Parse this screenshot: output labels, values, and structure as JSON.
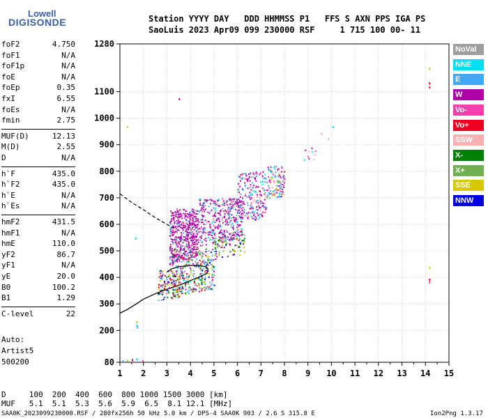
{
  "logo": {
    "line1": "Lowell",
    "line2": "DIGISONDE"
  },
  "header": {
    "line1": "Station YYYY DAY   DDD HHMMSS P1   FFS S AXN PPS IGA PS",
    "line2": "SaoLuis 2023 Apr09 099 230000 RSF     1 715 100 00- 11"
  },
  "params": [
    {
      "name": "foF2",
      "value": "4.750"
    },
    {
      "name": "foF1",
      "value": "N/A"
    },
    {
      "name": "foF1p",
      "value": "N/A"
    },
    {
      "name": "foE",
      "value": "N/A"
    },
    {
      "name": "foEp",
      "value": "0.35"
    },
    {
      "name": "fxI",
      "value": "6.55"
    },
    {
      "name": "foEs",
      "value": "N/A"
    },
    {
      "name": "fmin",
      "value": "2.75"
    },
    {
      "name": "MUF(D)",
      "value": "12.13"
    },
    {
      "name": "M(D)",
      "value": "2.55"
    },
    {
      "name": "D",
      "value": "N/A"
    },
    {
      "name": "h`F",
      "value": "435.0"
    },
    {
      "name": "h`F2",
      "value": "435.0"
    },
    {
      "name": "h`E",
      "value": "N/A"
    },
    {
      "name": "h`Es",
      "value": "N/A"
    },
    {
      "name": "hmF2",
      "value": "431.5"
    },
    {
      "name": "hmF1",
      "value": "N/A"
    },
    {
      "name": "hmE",
      "value": "110.0"
    },
    {
      "name": "yF2",
      "value": "86.7"
    },
    {
      "name": "yF1",
      "value": "N/A"
    },
    {
      "name": "yE",
      "value": "20.0"
    },
    {
      "name": "B0",
      "value": "100.2"
    },
    {
      "name": "B1",
      "value": "1.29"
    },
    {
      "name": "C-level",
      "value": "22"
    }
  ],
  "autoscaling": {
    "line1": "Auto:",
    "line2": "Artist5",
    "line3": "500200"
  },
  "legend": [
    {
      "label": "NoVal",
      "color": "#9e9e9e"
    },
    {
      "label": "NNE",
      "color": "#00e0f0"
    },
    {
      "label": "E",
      "color": "#40a8f8"
    },
    {
      "label": "W",
      "color": "#b000a8"
    },
    {
      "label": "Vo-",
      "color": "#f040b0"
    },
    {
      "label": "Vo+",
      "color": "#f00020"
    },
    {
      "label": "SSW",
      "color": "#f8b0b0"
    },
    {
      "label": "X-",
      "color": "#008000"
    },
    {
      "label": "X+",
      "color": "#70b050"
    },
    {
      "label": "SSE",
      "color": "#d8c800"
    },
    {
      "label": "NNW",
      "color": "#0000e0"
    }
  ],
  "mufTable": {
    "dLabel": "D",
    "mufLabel": "MUF",
    "distances": [
      "100",
      "200",
      "400",
      "600",
      "800",
      "1000",
      "1500",
      "3000"
    ],
    "mufs": [
      "5.1",
      "5.1",
      "5.3",
      "5.6",
      "5.9",
      "6.5",
      "8.1",
      "12.1"
    ],
    "dUnit": "[km]",
    "mufUnit": "[MHz]"
  },
  "footer": {
    "left": "SAA0K_2023099230000.RSF / 280fx256h 50 kHz 5.0 km / DPS-4 SAA0K 903 / 2.6 S 315.8 E",
    "right": "Ion2Png 1.3.17"
  },
  "chart_data": {
    "type": "scatter",
    "xlim": [
      1,
      15
    ],
    "ylim": [
      80,
      1280
    ],
    "xticks": [
      1,
      2,
      3,
      4,
      5,
      6,
      7,
      8,
      9,
      10,
      11,
      12,
      13,
      14,
      15
    ],
    "yticks": [
      80,
      200,
      300,
      400,
      500,
      600,
      700,
      800,
      900,
      1000,
      1100,
      1280
    ],
    "grid": true,
    "profile_solid": [
      [
        1.0,
        265
      ],
      [
        1.3,
        278
      ],
      [
        1.7,
        300
      ],
      [
        2.0,
        318
      ],
      [
        2.5,
        338
      ],
      [
        3.0,
        355
      ],
      [
        3.5,
        370
      ],
      [
        4.0,
        388
      ],
      [
        4.4,
        402
      ],
      [
        4.7,
        415
      ],
      [
        4.75,
        432
      ],
      [
        4.65,
        440
      ],
      [
        4.4,
        445
      ],
      [
        4.0,
        445
      ],
      [
        3.5,
        440
      ],
      [
        3.2,
        432
      ],
      [
        3.0,
        420
      ]
    ],
    "profile_dashed": [
      [
        1.0,
        715
      ],
      [
        1.5,
        682
      ],
      [
        2.0,
        655
      ],
      [
        2.5,
        625
      ],
      [
        3.0,
        600
      ],
      [
        3.3,
        585
      ]
    ],
    "clusters": [
      {
        "x": [
          3.1,
          4.3
        ],
        "y": [
          450,
          660
        ],
        "n": 520,
        "palette": [
          3,
          3,
          3,
          3,
          3,
          3,
          4,
          4,
          2,
          0
        ]
      },
      {
        "x": [
          4.3,
          6.2
        ],
        "y": [
          520,
          700
        ],
        "n": 380,
        "palette": [
          3,
          3,
          3,
          3,
          3,
          4,
          2,
          1,
          0
        ]
      },
      {
        "x": [
          6.0,
          7.2
        ],
        "y": [
          600,
          800
        ],
        "n": 220,
        "palette": [
          3,
          3,
          3,
          4,
          1,
          2,
          6
        ]
      },
      {
        "x": [
          7.2,
          8.0
        ],
        "y": [
          690,
          820
        ],
        "n": 130,
        "palette": [
          1,
          2,
          2,
          6,
          3,
          9,
          4
        ]
      },
      {
        "x": [
          3.2,
          5.0
        ],
        "y": [
          330,
          510
        ],
        "n": 320,
        "palette": [
          10,
          7,
          9,
          4,
          5,
          3,
          0,
          1,
          2,
          8
        ]
      },
      {
        "x": [
          2.6,
          3.6
        ],
        "y": [
          310,
          430
        ],
        "n": 120,
        "palette": [
          9,
          4,
          10,
          7,
          2,
          5
        ]
      },
      {
        "x": [
          5.0,
          6.3
        ],
        "y": [
          470,
          580
        ],
        "n": 90,
        "palette": [
          8,
          7,
          10,
          3,
          9
        ]
      },
      {
        "x": [
          8.8,
          9.3
        ],
        "y": [
          830,
          890
        ],
        "n": 10,
        "palette": [
          6,
          3,
          1,
          4
        ]
      }
    ],
    "points": [
      {
        "x": 3.5,
        "y": 1075,
        "c": 3
      },
      {
        "x": 1.3,
        "y": 970,
        "c": 9
      },
      {
        "x": 10.05,
        "y": 970,
        "c": 1
      },
      {
        "x": 9.55,
        "y": 945,
        "c": 6
      },
      {
        "x": 9.85,
        "y": 925,
        "c": 6
      },
      {
        "x": 1.65,
        "y": 550,
        "c": 1
      },
      {
        "x": 1.7,
        "y": 235,
        "c": 9
      },
      {
        "x": 1.7,
        "y": 222,
        "c": 1
      },
      {
        "x": 1.72,
        "y": 215,
        "c": 2
      },
      {
        "x": 1.1,
        "y": 88,
        "c": 2
      },
      {
        "x": 1.3,
        "y": 90,
        "c": 9
      },
      {
        "x": 1.5,
        "y": 92,
        "c": 3
      },
      {
        "x": 1.7,
        "y": 95,
        "c": 1
      },
      {
        "x": 1.95,
        "y": 88,
        "c": 4
      },
      {
        "x": 14.15,
        "y": 1135,
        "c": 5
      },
      {
        "x": 14.15,
        "y": 1120,
        "c": 5
      },
      {
        "x": 14.15,
        "y": 1190,
        "c": 9
      },
      {
        "x": 14.15,
        "y": 395,
        "c": 5
      },
      {
        "x": 14.15,
        "y": 385,
        "c": 4
      },
      {
        "x": 14.15,
        "y": 440,
        "c": 9
      }
    ]
  }
}
